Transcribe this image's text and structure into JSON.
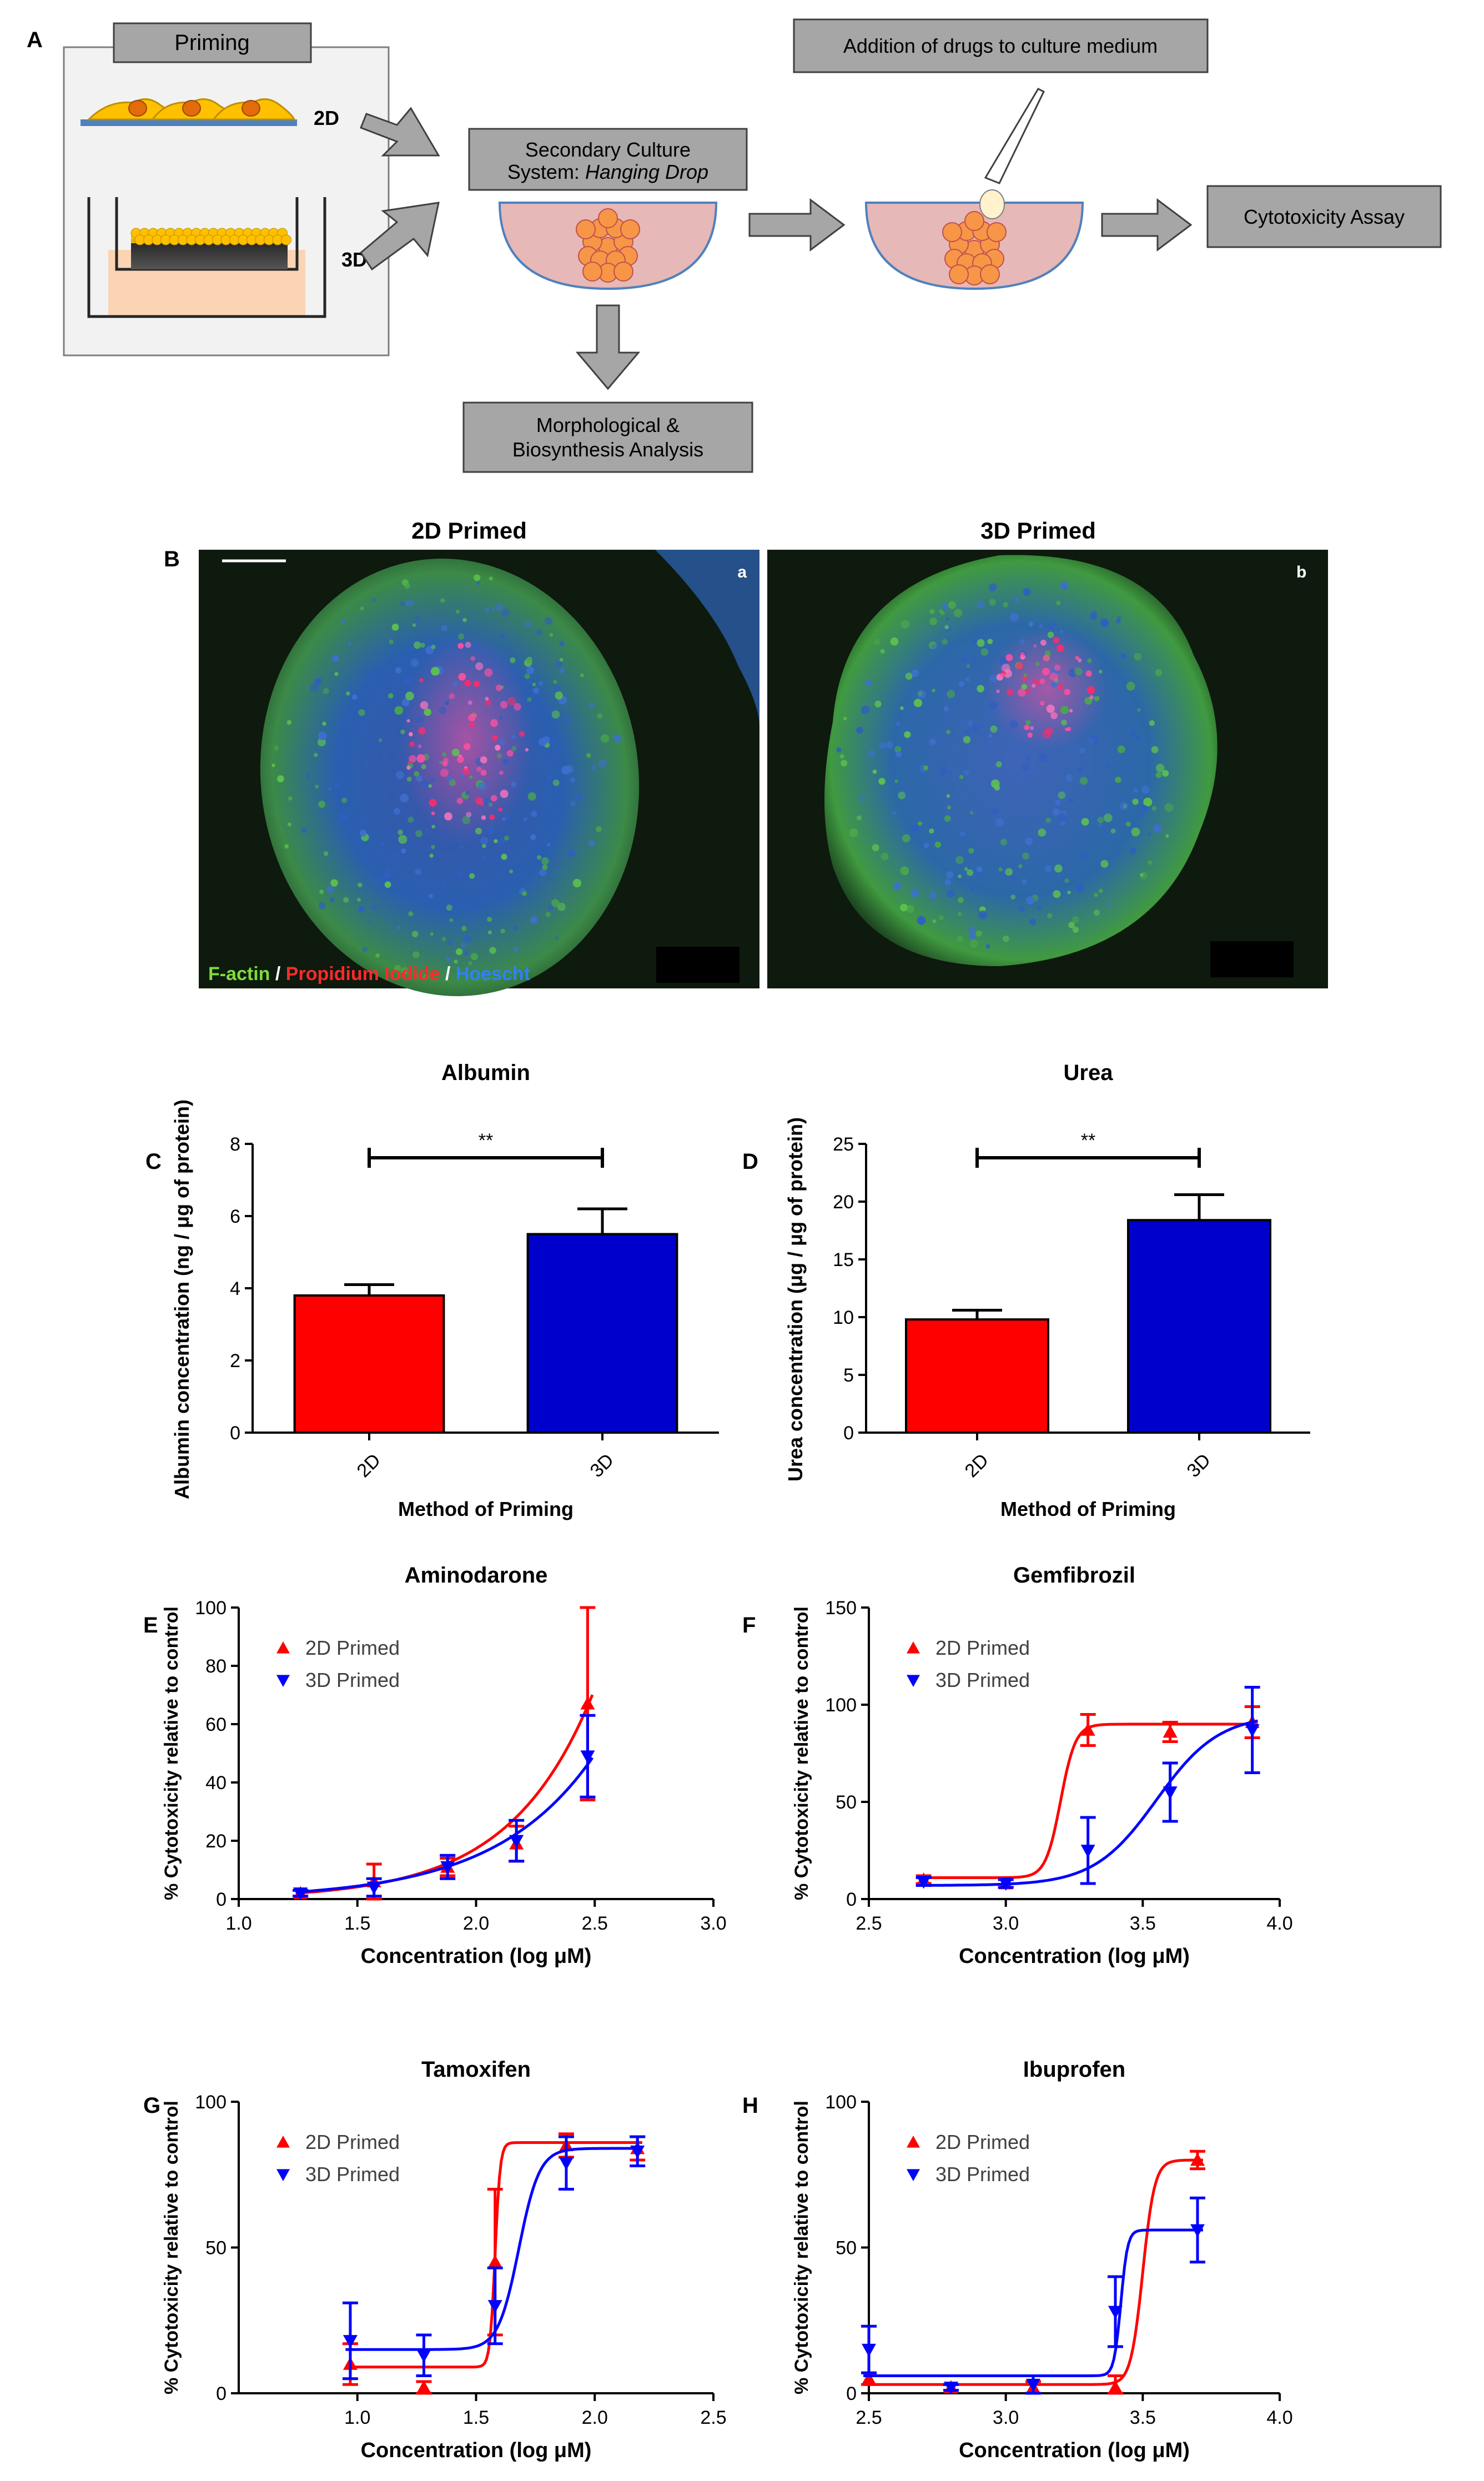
{
  "panel_a": {
    "label": "A",
    "priming_title": "Priming",
    "label_2d": "2D",
    "label_3d": "3D",
    "secondary_line1": "Secondary Culture",
    "secondary_line2_prefix": "System: ",
    "secondary_line2_italic": "Hanging Drop",
    "addition": "Addition of drugs to culture medium",
    "cytotoxicity": "Cytotoxicity Assay",
    "morph_line1": "Morphological &",
    "morph_line2": "Biosynthesis Analysis",
    "colors": {
      "box_fill": "#a6a6a6",
      "drop_fill": "#e6b8b7",
      "drop_stroke": "#4f81bd",
      "cell": "#f79646",
      "arrow": "#a6a6a6"
    }
  },
  "panel_b": {
    "label": "B",
    "title_left": "2D Primed",
    "title_right": "3D Primed",
    "sub_a": "a",
    "sub_b": "b",
    "legend_factin": "F-actin",
    "legend_sep1": " / ",
    "legend_pi": "Propidium Iodide",
    "legend_sep2": " / ",
    "legend_hoechst": "Hoescht",
    "colors": {
      "factin": "#7fdc3c",
      "pi": "#ff2a2a",
      "hoechst": "#2f7fff"
    }
  },
  "chart_data": [
    {
      "id": "C",
      "type": "bar",
      "title": "Albumin",
      "xlabel": "Method of Priming",
      "ylabel": "Albumin concentration (ng / μg of protein)",
      "categories": [
        "2D",
        "3D"
      ],
      "values": [
        3.8,
        5.5
      ],
      "errors": [
        0.3,
        0.7
      ],
      "colors": [
        "#ff0000",
        "#0000cc"
      ],
      "ylim": [
        0,
        8
      ],
      "yticks": [
        0,
        2,
        4,
        6,
        8
      ],
      "significance": "**"
    },
    {
      "id": "D",
      "type": "bar",
      "title": "Urea",
      "xlabel": "Method of Priming",
      "ylabel": "Urea concentration (μg / μg of protein)",
      "categories": [
        "2D",
        "3D"
      ],
      "values": [
        9.8,
        18.4
      ],
      "errors": [
        0.8,
        2.2
      ],
      "colors": [
        "#ff0000",
        "#0000cc"
      ],
      "ylim": [
        0,
        25
      ],
      "yticks": [
        0,
        5,
        10,
        15,
        20,
        25
      ],
      "significance": "**"
    },
    {
      "id": "E",
      "type": "scatter",
      "title": "Aminodarone",
      "xlabel": "Concentration (log μM)",
      "ylabel": "% Cytotoxicity relative to control",
      "xlim": [
        1.0,
        3.0
      ],
      "ylim": [
        0,
        100
      ],
      "xticks": [
        1.0,
        1.5,
        2.0,
        2.5,
        3.0
      ],
      "yticks": [
        0,
        20,
        40,
        60,
        80,
        100
      ],
      "xdec": 1,
      "series": [
        {
          "name": "2D Primed",
          "color": "#ff0000",
          "marker": "up",
          "x": [
            1.26,
            1.57,
            1.88,
            2.17,
            2.47
          ],
          "y": [
            2,
            6,
            11,
            19,
            67
          ],
          "err": [
            1,
            6,
            3,
            6,
            33
          ],
          "fit": {
            "type": "exp",
            "a": 0.058,
            "b": 2.85
          }
        },
        {
          "name": "3D Primed",
          "color": "#0000ff",
          "marker": "down",
          "x": [
            1.26,
            1.57,
            1.88,
            2.17,
            2.47
          ],
          "y": [
            2,
            4,
            11,
            20,
            49
          ],
          "err": [
            1,
            3,
            4,
            7,
            14
          ],
          "fit": {
            "type": "exp",
            "a": 0.12,
            "b": 2.41
          }
        }
      ]
    },
    {
      "id": "F",
      "type": "scatter",
      "title": "Gemfibrozil",
      "xlabel": "Concentration (log μM)",
      "ylabel": "% Cytotoxicity relative to control",
      "xlim": [
        2.5,
        4.0
      ],
      "ylim": [
        0,
        150
      ],
      "xticks": [
        2.5,
        3.0,
        3.5,
        4.0
      ],
      "yticks": [
        0,
        50,
        100,
        150
      ],
      "xdec": 1,
      "series": [
        {
          "name": "2D Primed",
          "color": "#ff0000",
          "marker": "up",
          "x": [
            2.7,
            3.0,
            3.3,
            3.6,
            3.9
          ],
          "y": [
            10,
            8,
            87,
            86,
            91
          ],
          "err": [
            2,
            2,
            8,
            5,
            8
          ],
          "fit": {
            "type": "sig",
            "bottom": 11,
            "top": 90,
            "x0": 3.2,
            "h": 16
          }
        },
        {
          "name": "3D Primed",
          "color": "#0000ff",
          "marker": "down",
          "x": [
            2.7,
            3.0,
            3.3,
            3.6,
            3.9
          ],
          "y": [
            9,
            8,
            25,
            55,
            87
          ],
          "err": [
            2,
            2,
            17,
            15,
            22
          ],
          "fit": {
            "type": "sig",
            "bottom": 7,
            "top": 95,
            "x0": 3.55,
            "h": 3.8
          }
        }
      ]
    },
    {
      "id": "G",
      "type": "scatter",
      "title": "Tamoxifen",
      "xlabel": "Concentration (log μM)",
      "ylabel": "% Cytotoxicity relative to control",
      "xlim": [
        0.5,
        2.5
      ],
      "ylim": [
        0,
        100
      ],
      "xticks": [
        1.0,
        1.5,
        2.0,
        2.5
      ],
      "yticks": [
        0,
        50,
        100
      ],
      "xdec": 1,
      "series": [
        {
          "name": "2D Primed",
          "color": "#ff0000",
          "marker": "up",
          "x": [
            0.97,
            1.28,
            1.58,
            1.88,
            2.18
          ],
          "y": [
            10,
            2,
            45,
            85,
            84
          ],
          "err": [
            7,
            2,
            25,
            4,
            4
          ],
          "fit": {
            "type": "sig",
            "bottom": 9,
            "top": 86,
            "x0": 1.58,
            "h": 40
          }
        },
        {
          "name": "3D Primed",
          "color": "#0000ff",
          "marker": "down",
          "x": [
            0.97,
            1.28,
            1.58,
            1.88,
            2.18
          ],
          "y": [
            18,
            13,
            30,
            79,
            83
          ],
          "err": [
            13,
            7,
            13,
            9,
            5
          ],
          "fit": {
            "type": "sig",
            "bottom": 15,
            "top": 84,
            "x0": 1.68,
            "h": 10
          }
        }
      ]
    },
    {
      "id": "H",
      "type": "scatter",
      "title": "Ibuprofen",
      "xlabel": "Concentration (log μM)",
      "ylabel": "% Cytotoxicity relative to control",
      "xlim": [
        2.5,
        4.0
      ],
      "ylim": [
        0,
        100
      ],
      "xticks": [
        2.5,
        3.0,
        3.5,
        4.0
      ],
      "yticks": [
        0,
        50,
        100
      ],
      "xdec": 1,
      "series": [
        {
          "name": "2D Primed",
          "color": "#ff0000",
          "marker": "up",
          "x": [
            2.5,
            2.8,
            3.1,
            3.4,
            3.7
          ],
          "y": [
            5,
            2,
            2,
            2,
            80
          ],
          "err": [
            2,
            1,
            2,
            4,
            3
          ],
          "fit": {
            "type": "sig",
            "bottom": 3,
            "top": 80,
            "x0": 3.5,
            "h": 20
          }
        },
        {
          "name": "3D Primed",
          "color": "#0000ff",
          "marker": "down",
          "x": [
            2.5,
            2.8,
            3.1,
            3.4,
            3.7
          ],
          "y": [
            15,
            2,
            3,
            28,
            56
          ],
          "err": [
            8,
            1,
            3,
            12,
            11
          ],
          "fit": {
            "type": "sig",
            "bottom": 6,
            "top": 56,
            "x0": 3.42,
            "h": 35
          }
        }
      ]
    }
  ]
}
